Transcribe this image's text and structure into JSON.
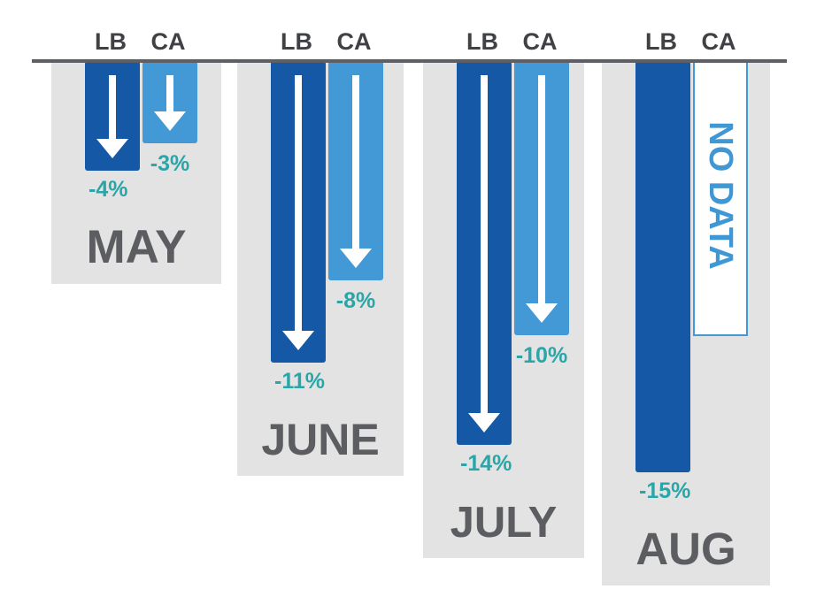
{
  "chart_data": {
    "type": "bar",
    "categories": [
      "MAY",
      "JUNE",
      "JULY",
      "AUG"
    ],
    "series": [
      {
        "name": "LB",
        "values": [
          -4,
          -11,
          -14,
          -15
        ],
        "labels": [
          "-4%",
          "-11%",
          "-14%",
          "-15%"
        ]
      },
      {
        "name": "CA",
        "values": [
          -3,
          -8,
          -10,
          null
        ],
        "labels": [
          "-3%",
          "-8%",
          "-10%",
          ""
        ]
      }
    ],
    "missing_label": "NO DATA",
    "ylim": [
      -15,
      0
    ],
    "colors": {
      "LB": "#1559a6",
      "CA": "#4399d6",
      "panel": "#e3e3e3",
      "axis": "#5c5f63",
      "month_text": "#5b5d60",
      "value_text": "#2aa6a8",
      "arrow": "#ffffff"
    }
  }
}
